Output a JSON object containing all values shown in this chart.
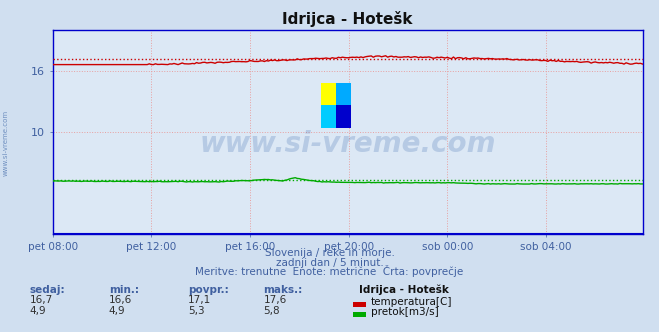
{
  "title": "Idrijca - Hotešk",
  "bg_color": "#d0dff0",
  "plot_bg_color": "#dce8f5",
  "grid_color": "#e8a0a0",
  "grid_style": "dotted",
  "border_color": "#0000cc",
  "tick_label_color": "#4060a0",
  "text_color": "#4060a0",
  "temp_color": "#cc0000",
  "flow_color": "#00aa00",
  "level_color": "#0000cc",
  "avg_temp_color": "#cc0000",
  "avg_flow_color": "#00aa00",
  "x_labels": [
    "pet 08:00",
    "pet 12:00",
    "pet 16:00",
    "pet 20:00",
    "sob 00:00",
    "sob 04:00"
  ],
  "x_ticks_pos": [
    0,
    48,
    96,
    144,
    192,
    240
  ],
  "ylim": [
    0,
    20
  ],
  "ytick_vals": [
    10,
    16
  ],
  "ytick_labels": [
    "10",
    "16"
  ],
  "total_points": 288,
  "temp_avg": 17.1,
  "flow_avg": 5.3,
  "subtitle1": "Slovenija / reke in morje.",
  "subtitle2": "zadnji dan / 5 minut.",
  "subtitle3": "Meritve: trenutne  Enote: metrične  Črta: povprečje",
  "table_header": [
    "sedaj:",
    "min.:",
    "povpr.:",
    "maks.:"
  ],
  "table_row1": [
    "16,7",
    "16,6",
    "17,1",
    "17,6"
  ],
  "table_row2": [
    "4,9",
    "4,9",
    "5,3",
    "5,8"
  ],
  "legend_label1": "temperatura[C]",
  "legend_label2": "pretok[m3/s]",
  "station_label": "Idrijca - Hotešk",
  "watermark": "www.si-vreme.com",
  "watermark_color": "#3060a8",
  "watermark_alpha": 0.22,
  "left_label": "www.si-vreme.com",
  "left_label_color": "#7090c0"
}
